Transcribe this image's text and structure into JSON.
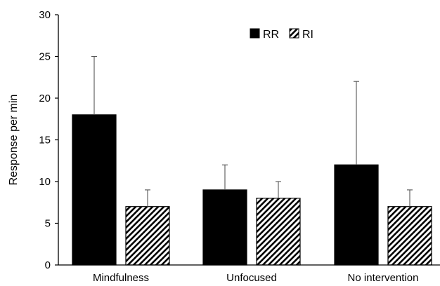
{
  "chart_data": {
    "type": "bar",
    "title": "",
    "xlabel": "",
    "ylabel": "Response per min",
    "ylim": [
      0,
      30
    ],
    "yticks": [
      0,
      5,
      10,
      15,
      20,
      25,
      30
    ],
    "grid": false,
    "legend_position": "top-right",
    "categories": [
      "Mindfulness",
      "Unfocused",
      "No intervention"
    ],
    "series": [
      {
        "name": "RR",
        "fill": "solid",
        "color": "#000000",
        "values": [
          18,
          9,
          12
        ],
        "error_upper": [
          7,
          3,
          10
        ]
      },
      {
        "name": "RI",
        "fill": "diagonal-hatch",
        "color": "#000000",
        "values": [
          7,
          8,
          7
        ],
        "error_upper": [
          2,
          2,
          2
        ]
      }
    ]
  }
}
